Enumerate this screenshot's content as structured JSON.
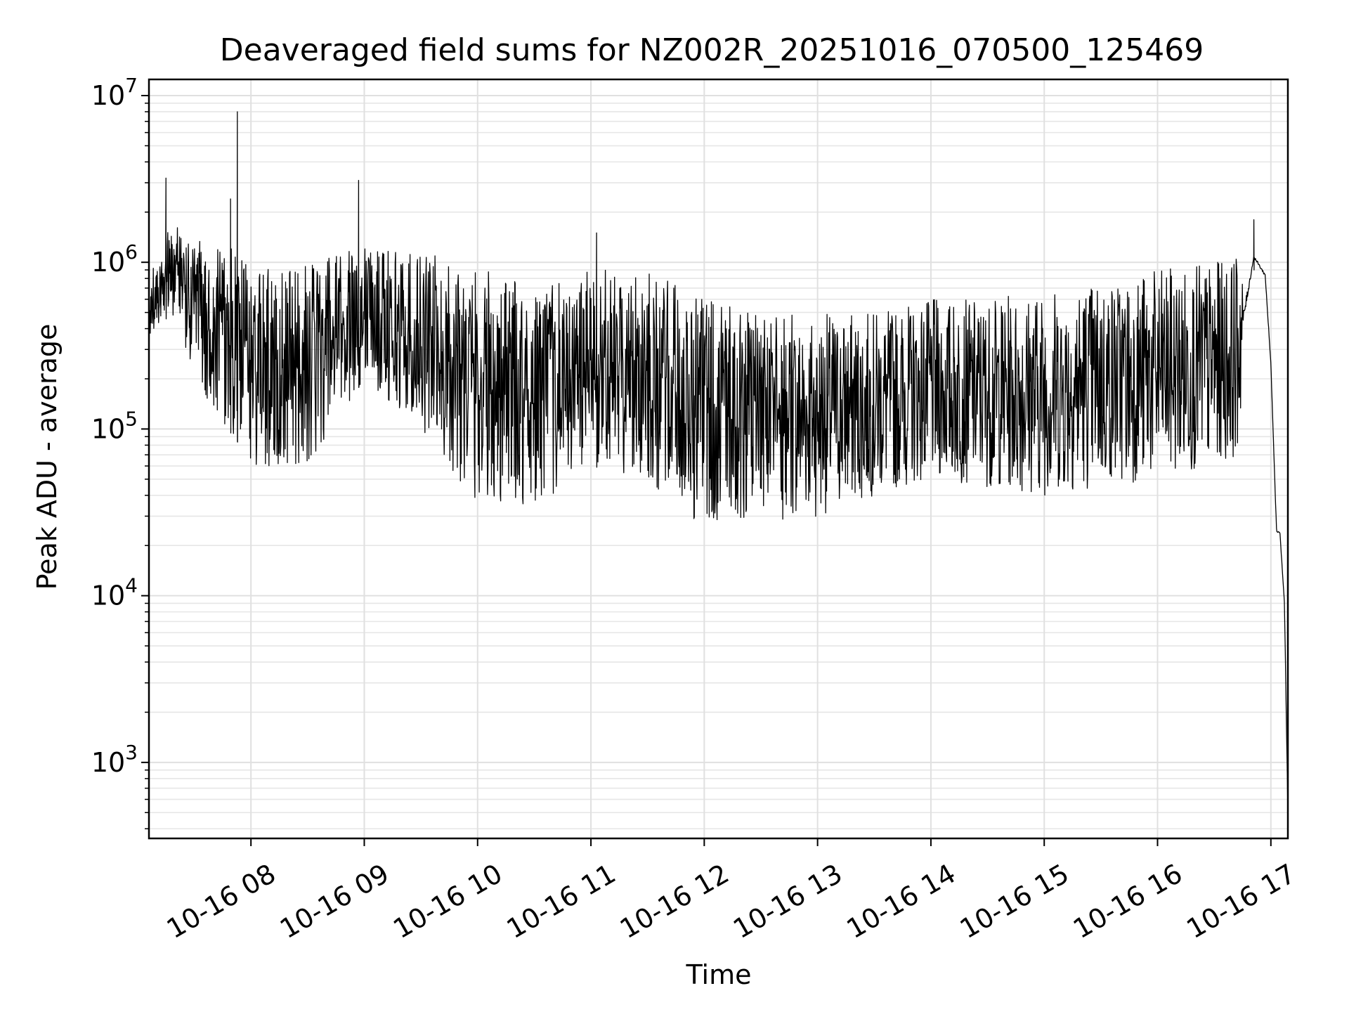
{
  "chart_data": {
    "type": "line",
    "title": "Deaveraged field sums for NZ002R_20251016_070500_125469",
    "xlabel": "Time",
    "ylabel": "Peak ADU - average",
    "yscale": "log",
    "ylim": [
      350,
      12500000
    ],
    "y_ticks": [
      {
        "mantissa": "10",
        "exponent": "3",
        "value": 1000
      },
      {
        "mantissa": "10",
        "exponent": "4",
        "value": 10000
      },
      {
        "mantissa": "10",
        "exponent": "5",
        "value": 100000
      },
      {
        "mantissa": "10",
        "exponent": "6",
        "value": 1000000
      },
      {
        "mantissa": "10",
        "exponent": "7",
        "value": 10000000
      }
    ],
    "xlim": [
      7.1,
      17.15
    ],
    "x_tick_hours": [
      8,
      9,
      10,
      11,
      12,
      13,
      14,
      15,
      16,
      17
    ],
    "x_tick_labels": [
      "10-16 08",
      "10-16 09",
      "10-16 10",
      "10-16 11",
      "10-16 12",
      "10-16 13",
      "10-16 14",
      "10-16 15",
      "10-16 16",
      "10-16 17"
    ],
    "grid": true,
    "series": [
      {
        "name": "Peak ADU - average",
        "color": "#000000",
        "envelope_hours": [
          7.1,
          7.3,
          7.6,
          7.9,
          8.0,
          8.5,
          9.0,
          9.5,
          10.0,
          10.5,
          10.8,
          11.0,
          11.5,
          11.8,
          12.0,
          12.5,
          13.0,
          13.5,
          14.0,
          14.5,
          15.0,
          15.5,
          16.0,
          16.5,
          16.7,
          16.85,
          16.95,
          17.0,
          17.05,
          17.08,
          17.12,
          17.15
        ],
        "envelope_high": [
          800000,
          1800000,
          1300000,
          1200000,
          900000,
          1000000,
          1300000,
          1200000,
          1000000,
          700000,
          800000,
          900000,
          900000,
          700000,
          600000,
          500000,
          500000,
          500000,
          600000,
          600000,
          700000,
          800000,
          900000,
          1000000,
          1100000,
          1300000,
          1000000,
          300000,
          30000,
          26000,
          10000,
          500
        ],
        "envelope_low": [
          350000,
          500000,
          150000,
          80000,
          60000,
          60000,
          200000,
          100000,
          35000,
          35000,
          45000,
          60000,
          50000,
          30000,
          28000,
          28000,
          30000,
          40000,
          50000,
          45000,
          40000,
          45000,
          50000,
          60000,
          70000,
          900000,
          700000,
          200000,
          20000,
          22000,
          8000,
          500
        ],
        "spikes": [
          {
            "hour": 7.25,
            "value": 3200000
          },
          {
            "hour": 7.88,
            "value": 8000000
          },
          {
            "hour": 7.82,
            "value": 2400000
          },
          {
            "hour": 8.95,
            "value": 3100000
          },
          {
            "hour": 11.05,
            "value": 1500000
          },
          {
            "hour": 16.85,
            "value": 1800000
          }
        ]
      }
    ]
  }
}
